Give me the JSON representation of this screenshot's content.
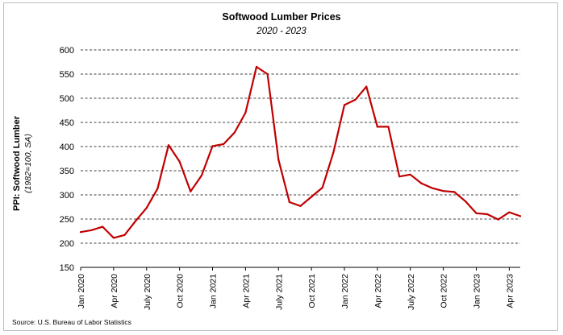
{
  "chart_data": {
    "type": "line",
    "title": "Softwood Lumber Prices",
    "subtitle": "2020 - 2023",
    "ylabel": "PPI: Softwood Lumber",
    "ylabel_sub": "(1982=100, SA)",
    "xlabel": "",
    "ylim": [
      150,
      600
    ],
    "yticks": [
      150,
      200,
      250,
      300,
      350,
      400,
      450,
      500,
      550,
      600
    ],
    "grid": true,
    "source": "Source: U.S. Bureau of Labor Statistics",
    "xtick_labels": [
      "Jan 2020",
      "Apr 2020",
      "July 2020",
      "Oct 2020",
      "Jan 2021",
      "Apr 2021",
      "July 2021",
      "Oct 2021",
      "Jan 2022",
      "Apr 2022",
      "July 2022",
      "Oct 2022",
      "Jan 2023",
      "Apr 2023"
    ],
    "x": [
      "2020-01",
      "2020-02",
      "2020-03",
      "2020-04",
      "2020-05",
      "2020-06",
      "2020-07",
      "2020-08",
      "2020-09",
      "2020-10",
      "2020-11",
      "2020-12",
      "2021-01",
      "2021-02",
      "2021-03",
      "2021-04",
      "2021-05",
      "2021-06",
      "2021-07",
      "2021-08",
      "2021-09",
      "2021-10",
      "2021-11",
      "2021-12",
      "2022-01",
      "2022-02",
      "2022-03",
      "2022-04",
      "2022-05",
      "2022-06",
      "2022-07",
      "2022-08",
      "2022-09",
      "2022-10",
      "2022-11",
      "2022-12",
      "2023-01",
      "2023-02",
      "2023-03",
      "2023-04",
      "2023-05"
    ],
    "series": [
      {
        "color": "#c00000",
        "values": [
          223,
          227,
          234,
          211,
          217,
          246,
          273,
          313,
          403,
          369,
          307,
          340,
          401,
          405,
          429,
          470,
          565,
          550,
          373,
          285,
          277,
          296,
          315,
          388,
          486,
          497,
          524,
          441,
          441,
          338,
          342,
          324,
          314,
          308,
          306,
          287,
          262,
          260,
          249,
          264,
          256
        ]
      }
    ]
  }
}
